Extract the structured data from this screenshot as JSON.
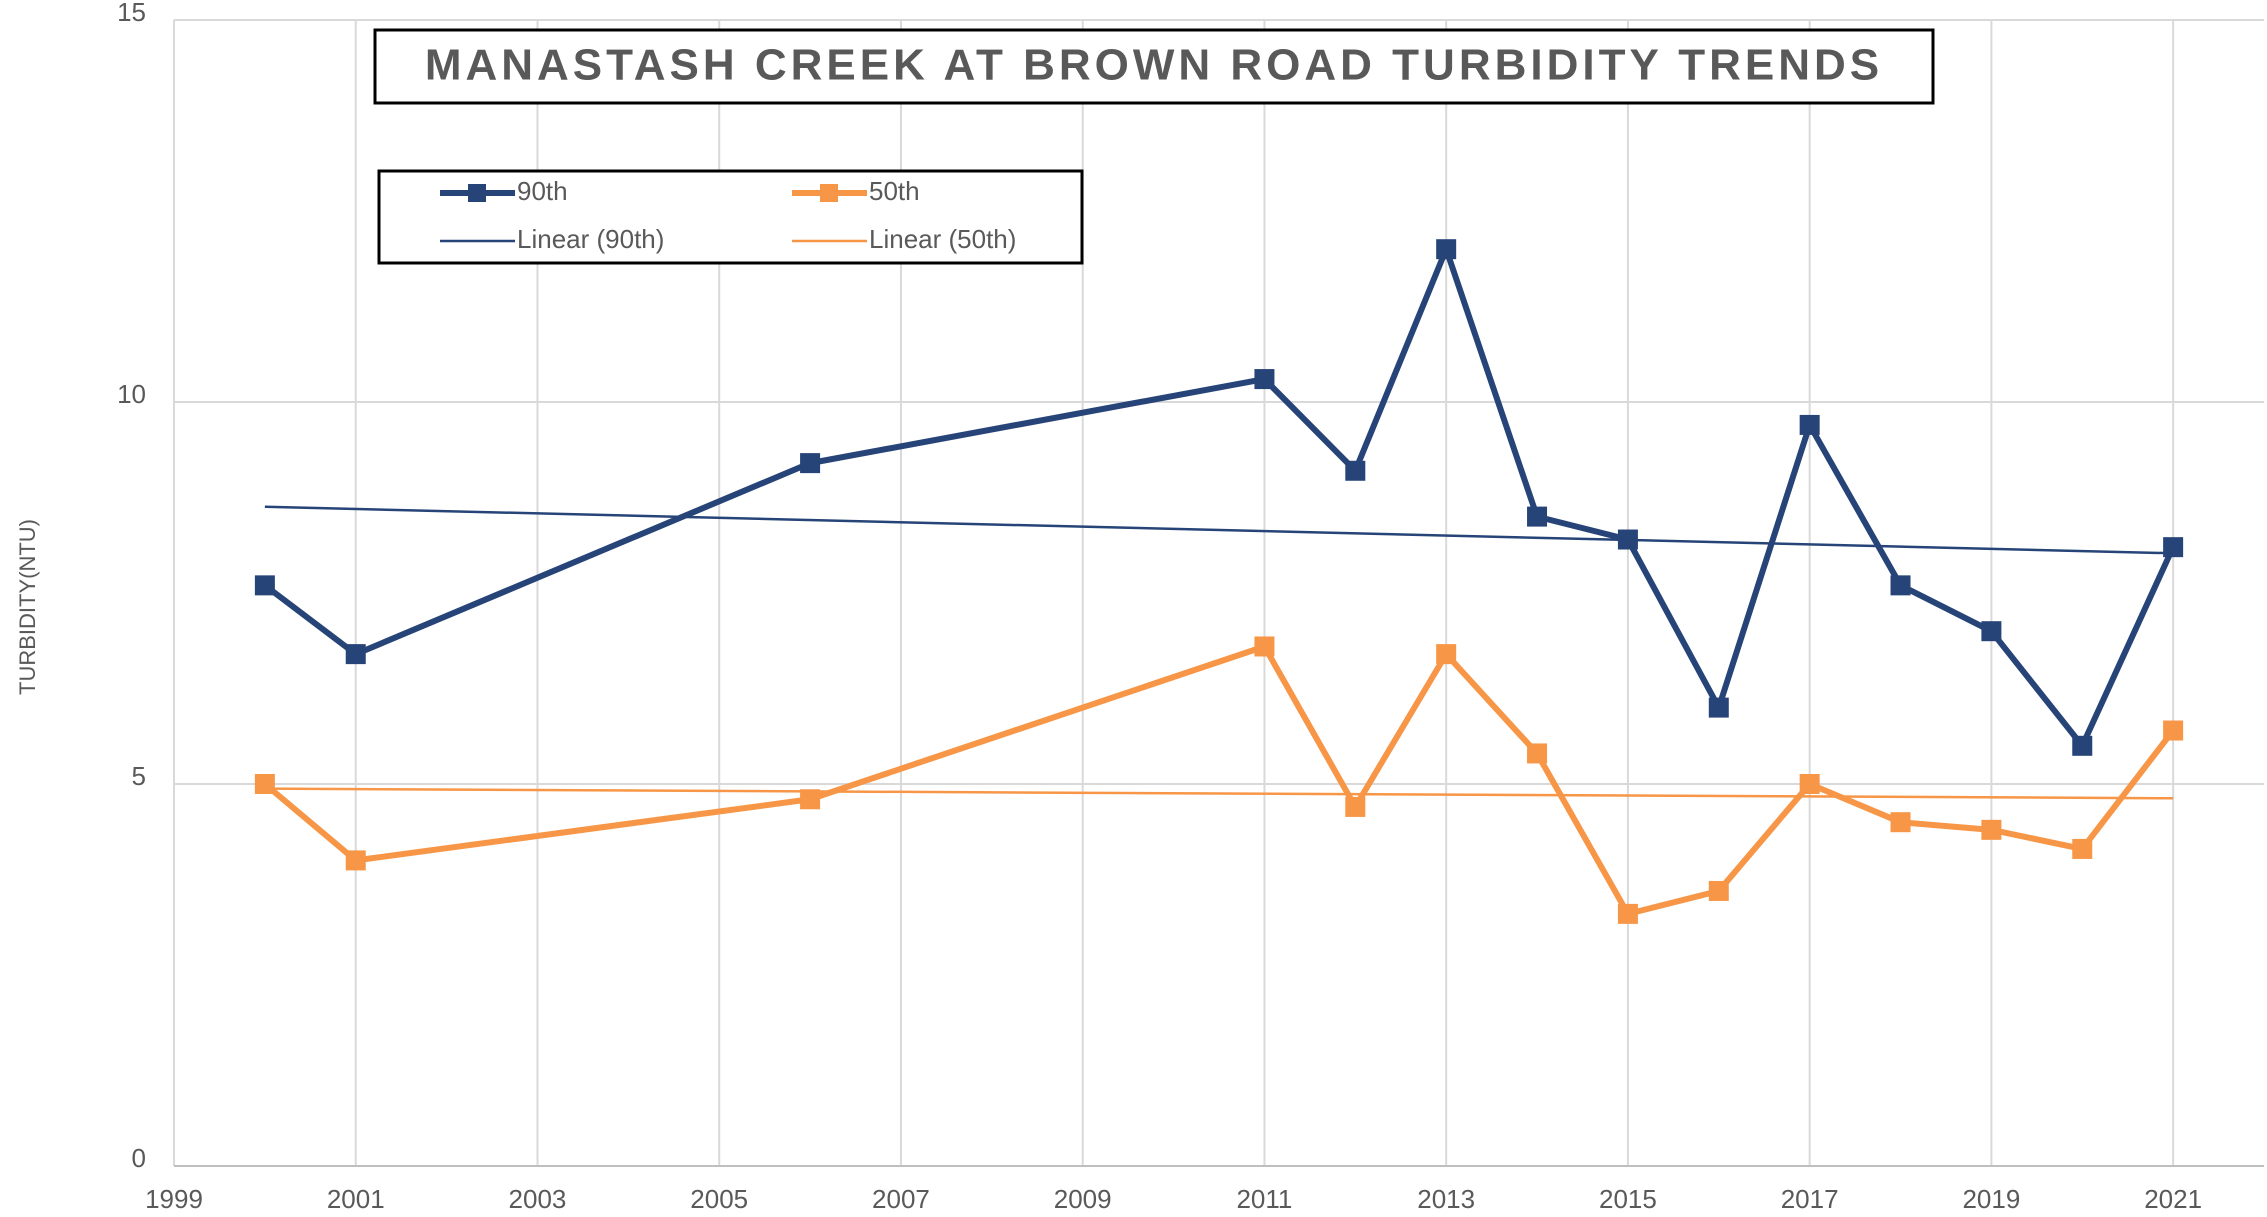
{
  "chart_data": {
    "type": "line",
    "title": "MANASTASH CREEK AT BROWN ROAD TURBIDITY TRENDS",
    "y_label": "TURBIDITY(NTU)",
    "x": [
      2000,
      2001,
      2006,
      2011,
      2012,
      2013,
      2014,
      2015,
      2016,
      2017,
      2018,
      2019,
      2020,
      2021
    ],
    "series": [
      {
        "name": "90th",
        "color": "#264478",
        "trendline_name": "Linear (90th)",
        "values": [
          7.6,
          6.7,
          9.2,
          10.3,
          9.1,
          12.0,
          8.5,
          8.2,
          6.0,
          9.7,
          7.6,
          7.0,
          5.5,
          8.1
        ]
      },
      {
        "name": "50th",
        "color": "#f79646",
        "trendline_name": "Linear (50th)",
        "values": [
          5.0,
          4.0,
          4.8,
          6.8,
          4.7,
          6.7,
          5.4,
          3.3,
          3.6,
          5.0,
          4.5,
          4.4,
          4.15,
          5.7
        ]
      }
    ],
    "xlim": [
      1999,
      2022
    ],
    "xticks": [
      1999,
      2001,
      2003,
      2005,
      2007,
      2009,
      2011,
      2013,
      2015,
      2017,
      2019,
      2021
    ],
    "ylim": [
      0,
      15
    ],
    "yticks": [
      0,
      5,
      10,
      15
    ],
    "grid": true,
    "trendline": "linear",
    "legend": "top-left"
  }
}
